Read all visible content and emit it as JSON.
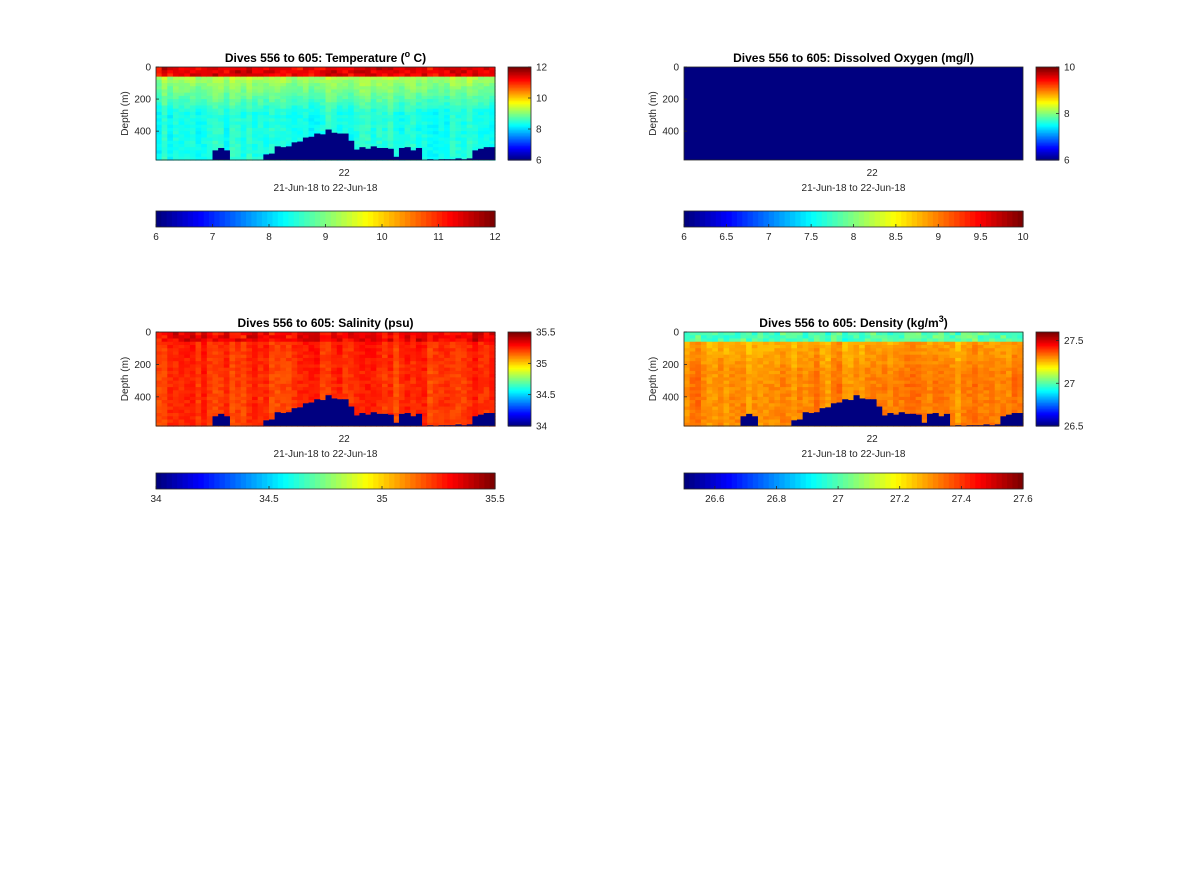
{
  "figure": {
    "background": "#ffffff",
    "colormap": "jet"
  },
  "chart_data": [
    {
      "type": "heatmap",
      "title": "Dives 556 to 605: Temperature (",
      "title_sup": "o",
      "title_tail": " C)",
      "ylabel": "Depth (m)",
      "xtick_label": "22",
      "xlabel": "21-Jun-18 to 22-Jun-18",
      "y_ticks": [
        "0",
        "200",
        "400"
      ],
      "ylim": [
        0,
        580
      ],
      "clim": [
        6,
        12
      ],
      "colorbar_ticks": [
        "6",
        "8",
        "10",
        "12"
      ],
      "horizontal_colorbar_ticks": [
        "6",
        "7",
        "8",
        "9",
        "10",
        "11",
        "12"
      ],
      "profile": {
        "surface": 11.4,
        "mid": 9.3,
        "deep": 8.4
      },
      "bathymetry_depths": [
        580,
        580,
        580,
        580,
        580,
        580,
        580,
        580,
        580,
        580,
        520,
        505,
        520,
        580,
        580,
        580,
        580,
        580,
        580,
        545,
        540,
        495,
        500,
        495,
        470,
        465,
        440,
        435,
        415,
        420,
        390,
        410,
        415,
        415,
        460,
        515,
        500,
        510,
        495,
        505,
        505,
        510,
        560,
        505,
        500,
        520,
        505,
        580,
        575,
        580,
        575,
        575,
        575,
        570,
        575,
        570,
        520,
        510,
        500,
        500
      ]
    },
    {
      "type": "heatmap",
      "title": "Dives 556 to 605: Dissolved Oxygen (mg/l)",
      "ylabel": "Depth (m)",
      "xtick_label": "22",
      "xlabel": "21-Jun-18 to 22-Jun-18",
      "y_ticks": [
        "0",
        "200",
        "400"
      ],
      "ylim": [
        0,
        580
      ],
      "clim": [
        6,
        10
      ],
      "colorbar_ticks": [
        "6",
        "8",
        "10"
      ],
      "horizontal_colorbar_ticks": [
        "6",
        "6.5",
        "7",
        "7.5",
        "8",
        "8.5",
        "9",
        "9.5",
        "10"
      ],
      "uniform_value": 6.0
    },
    {
      "type": "heatmap",
      "title": "Dives 556 to 605: Salinity (psu)",
      "ylabel": "Depth (m)",
      "xtick_label": "22",
      "xlabel": "21-Jun-18 to 22-Jun-18",
      "y_ticks": [
        "0",
        "200",
        "400"
      ],
      "ylim": [
        0,
        580
      ],
      "clim": [
        34,
        35.5
      ],
      "colorbar_ticks": [
        "34",
        "34.5",
        "35",
        "35.5"
      ],
      "horizontal_colorbar_ticks": [
        "34",
        "34.5",
        "35",
        "35.5"
      ],
      "profile": {
        "surface": 35.33,
        "mid": 35.26,
        "deep": 35.24
      },
      "bathymetry_depths": [
        580,
        580,
        580,
        580,
        580,
        580,
        580,
        580,
        580,
        580,
        520,
        505,
        520,
        580,
        580,
        580,
        580,
        580,
        580,
        545,
        540,
        495,
        500,
        495,
        470,
        465,
        440,
        435,
        415,
        420,
        390,
        410,
        415,
        415,
        460,
        515,
        500,
        510,
        495,
        505,
        505,
        510,
        560,
        505,
        500,
        520,
        505,
        580,
        575,
        580,
        575,
        575,
        575,
        570,
        575,
        570,
        520,
        510,
        500,
        500
      ]
    },
    {
      "type": "heatmap",
      "title": "Dives 556 to 605: Density (kg/m",
      "title_sup": "3",
      "title_tail": ")",
      "ylabel": "Depth (m)",
      "xtick_label": "22",
      "xlabel": "21-Jun-18 to 22-Jun-18",
      "y_ticks": [
        "0",
        "200",
        "400"
      ],
      "ylim": [
        0,
        580
      ],
      "clim": [
        26.5,
        27.6
      ],
      "colorbar_ticks": [
        "26.5",
        "27",
        "27.5"
      ],
      "horizontal_colorbar_ticks": [
        "26.6",
        "26.8",
        "27",
        "27.2",
        "27.4",
        "27.6"
      ],
      "profile": {
        "surface": 27.0,
        "mid": 27.28,
        "deep": 27.32
      },
      "bathymetry_depths": [
        580,
        580,
        580,
        580,
        580,
        580,
        580,
        580,
        580,
        580,
        520,
        505,
        520,
        580,
        580,
        580,
        580,
        580,
        580,
        545,
        540,
        495,
        500,
        495,
        470,
        465,
        440,
        435,
        415,
        420,
        390,
        410,
        415,
        415,
        460,
        515,
        500,
        510,
        495,
        505,
        505,
        510,
        560,
        505,
        500,
        520,
        505,
        580,
        575,
        580,
        575,
        575,
        575,
        570,
        575,
        570,
        520,
        510,
        500,
        500
      ]
    }
  ]
}
